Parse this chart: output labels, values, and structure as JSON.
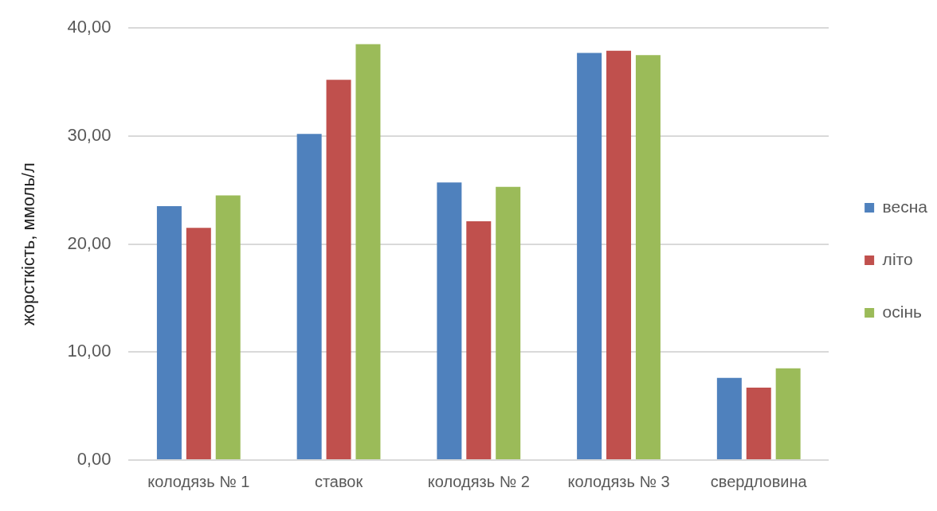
{
  "chart_data": {
    "type": "bar",
    "ylabel": "жорсткість, ммоль/л",
    "categories": [
      "колодязь № 1",
      "ставок",
      "колодязь № 2",
      "колодязь № 3",
      "свердловина"
    ],
    "series": [
      {
        "name": "весна",
        "color": "#4f81bd",
        "values": [
          23.5,
          30.2,
          25.7,
          37.7,
          7.6
        ]
      },
      {
        "name": "літо",
        "color": "#c0504d",
        "values": [
          21.5,
          35.2,
          22.1,
          37.9,
          6.7
        ]
      },
      {
        "name": "осінь",
        "color": "#9bbb59",
        "values": [
          24.5,
          38.5,
          25.3,
          37.5,
          8.5
        ]
      }
    ],
    "ylim": [
      0,
      40
    ],
    "yticks": [
      {
        "value": 0,
        "label": "0,00"
      },
      {
        "value": 10,
        "label": "10,00"
      },
      {
        "value": 20,
        "label": "20,00"
      },
      {
        "value": 30,
        "label": "30,00"
      },
      {
        "value": 40,
        "label": "40,00"
      }
    ],
    "grid": "y",
    "legend": "right"
  }
}
